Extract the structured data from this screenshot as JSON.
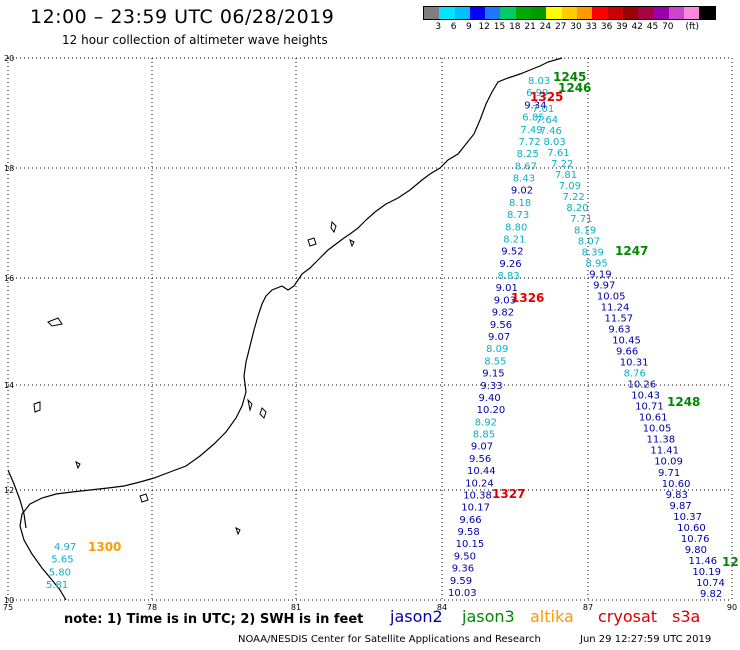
{
  "header": {
    "title": "12:00 – 23:59 UTC 06/28/2019",
    "subtitle": "12 hour collection of altimeter wave heights"
  },
  "color_scale": {
    "colors": [
      "#7f7f7f",
      "#00e5ff",
      "#00bfff",
      "#0000ff",
      "#1e78ff",
      "#00cc66",
      "#00aa00",
      "#009900",
      "#ffff00",
      "#ffcc00",
      "#ff9900",
      "#ff0000",
      "#cc0000",
      "#990000",
      "#aa0044",
      "#9900aa",
      "#cc44cc",
      "#ff88dd",
      "#000000"
    ],
    "labels": [
      "3",
      "6",
      "9",
      "12",
      "15",
      "18",
      "21",
      "24",
      "27",
      "30",
      "33",
      "36",
      "39",
      "42",
      "45",
      "70",
      "(ft)"
    ]
  },
  "map": {
    "lon_ticks": [
      "75",
      "78",
      "81",
      "84",
      "87",
      "90"
    ],
    "lat_ticks": [
      "10",
      "12",
      "14",
      "16",
      "18",
      "20"
    ],
    "lon_range": [
      75,
      90
    ],
    "lat_range": [
      10,
      20
    ]
  },
  "colors": {
    "jason2": "#0000aa",
    "jason3": "#0bb0c8",
    "altika": "#ff9900",
    "cryosat": "#dd0000",
    "s3a": "#008800"
  },
  "track_a_values": [
    "8.03",
    "6.99",
    "9.34",
    "6.85",
    "7.49",
    "7.72",
    "8.25",
    "8.67",
    "8.43",
    "9.02",
    "8.18",
    "8.73",
    "8.80",
    "8.21",
    "9.52",
    "9.26",
    "8.83",
    "9.01",
    "9.03",
    "9.82",
    "9.56",
    "9.07",
    "8.09",
    "8.55",
    "9.15",
    "9.33",
    "9.40",
    "10.20",
    "8.92",
    "8.85",
    "9.07",
    "9.56",
    "10.44",
    "10.24",
    "10.38",
    "10.17",
    "9.66",
    "9.58",
    "10.15",
    "9.50",
    "9.36",
    "9.59",
    "10.03"
  ],
  "track_b_values": [
    "7.01",
    "7.64",
    "7.46",
    "8.03",
    "7.61",
    "7.22",
    "7.81",
    "7.09",
    "7.22",
    "8.20",
    "7.71",
    "8.19",
    "8.07",
    "8.39",
    "8.95",
    "9.19",
    "9.97",
    "10.05",
    "11.24",
    "11.57",
    "9.63",
    "10.45",
    "9.66",
    "10.31",
    "8.76",
    "10.26",
    "10.43",
    "10.71",
    "10.61",
    "10.05",
    "11.38",
    "11.41",
    "10.09",
    "9.71",
    "10.60",
    "9.83",
    "9.87",
    "10.37",
    "10.60",
    "10.76",
    "9.80",
    "11.46",
    "10.19",
    "10.74",
    "9.82"
  ],
  "track_c_values": [
    "4.97",
    "5.65",
    "5.80",
    "5.81"
  ],
  "pass_labels": {
    "p1245": "1245",
    "p1246": "1246",
    "p1325": "1325",
    "p1247": "1247",
    "p1326": "1326",
    "p1248": "1248",
    "p1327": "1327",
    "p1300": "1300",
    "p12": "12"
  },
  "footer": {
    "note": "note:  1) Time is in UTC;  2) SWH is in feet",
    "legend": [
      "jason2",
      "jason3",
      "altika",
      "cryosat",
      "s3a"
    ],
    "credit": "NOAA/NESDIS Center for Satellite Applications and Research",
    "timestamp": "Jun 29 12:27:59 UTC 2019"
  }
}
